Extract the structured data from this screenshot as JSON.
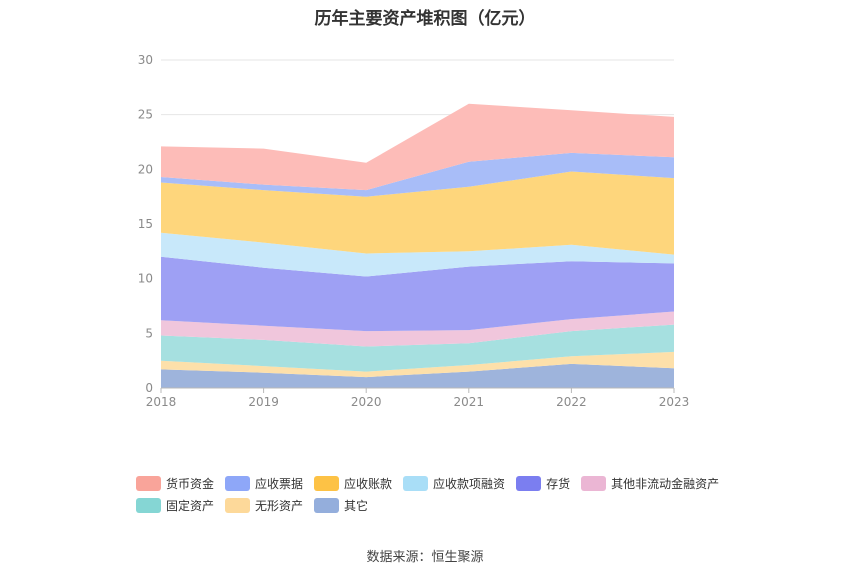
{
  "chart_data": {
    "type": "area",
    "stacked": true,
    "title": "历年主要资产堆积图（亿元）",
    "x": [
      "2018",
      "2019",
      "2020",
      "2021",
      "2022",
      "2023"
    ],
    "ylim": [
      0,
      30
    ],
    "yticks": [
      "0",
      "5",
      "10",
      "15",
      "20",
      "25",
      "30"
    ],
    "grid": true,
    "legend_position": "bottom",
    "series": [
      {
        "name": "其它",
        "color": "#9eb4dc",
        "values": [
          1.7,
          1.4,
          1.0,
          1.5,
          2.2,
          1.8
        ]
      },
      {
        "name": "无形资产",
        "color": "#fde0aa",
        "values": [
          0.8,
          0.6,
          0.5,
          0.6,
          0.7,
          1.5
        ]
      },
      {
        "name": "固定资产",
        "color": "#a6e0e0",
        "values": [
          2.3,
          2.4,
          2.3,
          2.0,
          2.3,
          2.5
        ]
      },
      {
        "name": "其他非流动金融资产",
        "color": "#f0c6dc",
        "values": [
          1.4,
          1.3,
          1.4,
          1.2,
          1.1,
          1.2
        ]
      },
      {
        "name": "存货",
        "color": "#9ea0f4",
        "values": [
          5.8,
          5.3,
          5.0,
          5.8,
          5.3,
          4.4
        ]
      },
      {
        "name": "应收款项融资",
        "color": "#c8e8fa",
        "values": [
          2.2,
          2.3,
          2.1,
          1.4,
          1.5,
          0.8
        ]
      },
      {
        "name": "应收账款",
        "color": "#fed67c",
        "values": [
          4.6,
          4.8,
          5.2,
          5.9,
          6.7,
          7.0
        ]
      },
      {
        "name": "应收票据",
        "color": "#a8bdf8",
        "values": [
          0.5,
          0.5,
          0.6,
          2.3,
          1.7,
          1.9
        ]
      },
      {
        "name": "货币资金",
        "color": "#fdbcb8",
        "values": [
          2.8,
          3.3,
          2.5,
          5.3,
          3.9,
          3.7
        ]
      }
    ]
  },
  "legend": {
    "row1": [
      {
        "name": "货币资金",
        "color": "#f9a49a"
      },
      {
        "name": "应收票据",
        "color": "#8ea7f8"
      },
      {
        "name": "应收账款",
        "color": "#fdc245"
      },
      {
        "name": "应收款项融资",
        "color": "#a9def7"
      },
      {
        "name": "存货",
        "color": "#7b7ef0"
      },
      {
        "name": "其他非流动金融资产",
        "color": "#ebb6d4"
      }
    ],
    "row2": [
      {
        "name": "固定资产",
        "color": "#85d6d4"
      },
      {
        "name": "无形资产",
        "color": "#fdd99a"
      },
      {
        "name": "其它",
        "color": "#94aedc"
      }
    ]
  },
  "source": "数据来源：恒生聚源"
}
